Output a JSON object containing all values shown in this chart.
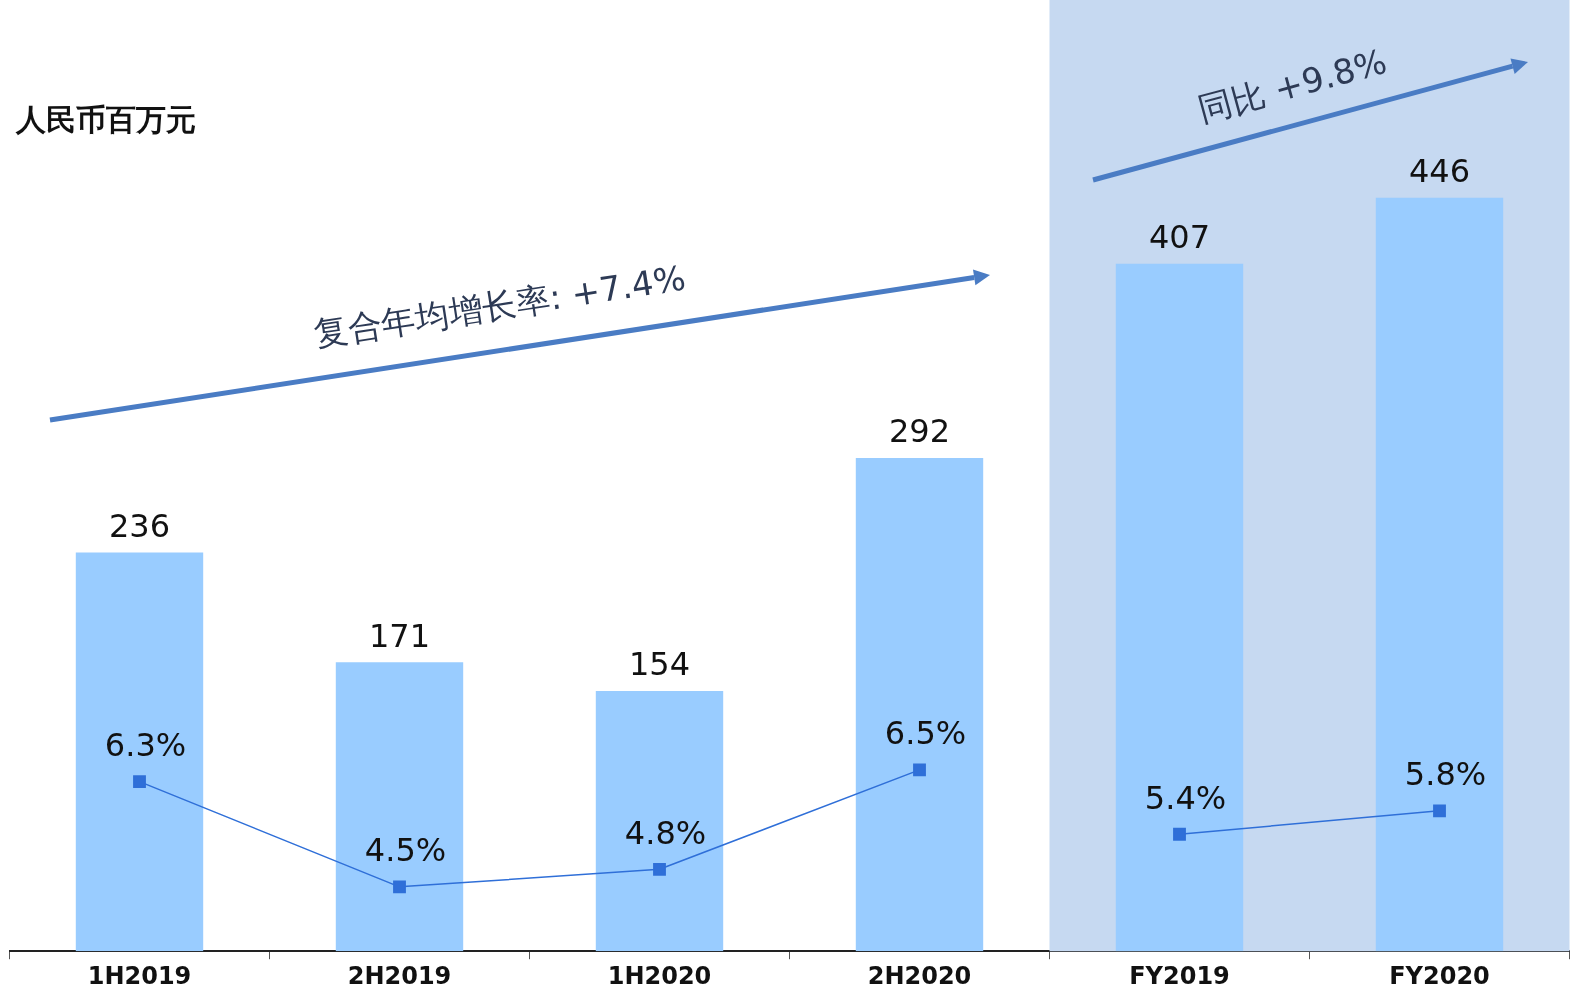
{
  "chart_data": {
    "type": "bar",
    "ylabel": "人民币百万元",
    "categories": [
      "1H2019",
      "2H2019",
      "1H2020",
      "2H2020",
      "FY2019",
      "FY2020"
    ],
    "series": [
      {
        "color": "#99ccff",
        "values": [
          236,
          171,
          154,
          292,
          407,
          446
        ],
        "value_labels": [
          "236",
          "171",
          "154",
          "292",
          "407",
          "446"
        ]
      },
      {
        "type": "line",
        "axis": "y2",
        "color": "#2f6fd8",
        "marker": "square",
        "values": [
          6.3,
          4.5,
          4.8,
          6.5,
          null,
          null
        ],
        "value_labels": [
          "6.3%",
          "4.5%",
          "4.8%",
          "6.5%",
          null,
          null
        ]
      },
      {
        "type": "line",
        "axis": "y2",
        "color": "#2f6fd8",
        "marker": "square",
        "values": [
          null,
          null,
          null,
          null,
          5.4,
          5.8
        ],
        "value_labels": [
          null,
          null,
          null,
          null,
          "5.4%",
          "5.8%"
        ]
      }
    ],
    "tick_labels": "x",
    "grid": false,
    "legend": false,
    "bands": [
      {
        "axis": "x",
        "from": "FY2019",
        "to": "FY2020",
        "color": "#c6d9f1"
      }
    ],
    "annotations": [
      "复合年均增长率: +7.4%",
      "同比 +9.8%"
    ]
  }
}
